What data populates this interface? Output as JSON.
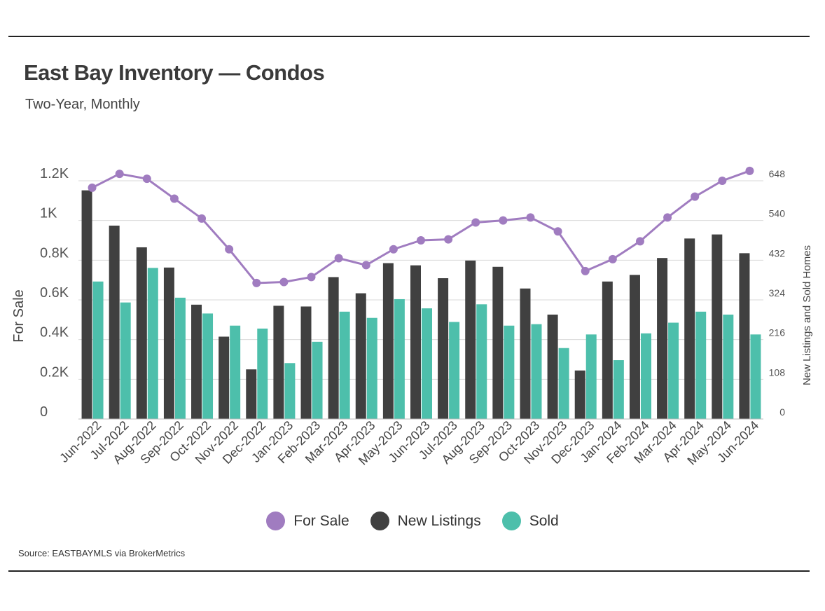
{
  "header": {
    "title": "East Bay Inventory — Condos",
    "subtitle": "Two-Year, Monthly"
  },
  "source": "Source:  EASTBAYMLS via BrokerMetrics",
  "colors": {
    "for_sale": "#a07cc0",
    "new_listings": "#404040",
    "sold": "#4dbfab",
    "grid": "#d9d9d9",
    "axis_text": "#555555"
  },
  "chart_data": {
    "type": "bar",
    "title": "East Bay Inventory — Condos",
    "subtitle": "Two-Year, Monthly",
    "categories": [
      "Jun-2022",
      "Jul-2022",
      "Aug-2022",
      "Sep-2022",
      "Oct-2022",
      "Nov-2022",
      "Dec-2022",
      "Jan-2023",
      "Feb-2023",
      "Mar-2023",
      "Apr-2023",
      "May-2023",
      "Jun-2023",
      "Jul-2023",
      "Aug-2023",
      "Sep-2023",
      "Oct-2023",
      "Nov-2023",
      "Dec-2023",
      "Jan-2024",
      "Feb-2024",
      "Mar-2024",
      "Apr-2024",
      "May-2024",
      "Jun-2024"
    ],
    "ylabel_left": "For Sale",
    "ylabel_right": "New Listings and Sold Homes",
    "ylim_left": [
      0,
      1200
    ],
    "ylim_right": [
      0,
      648
    ],
    "left_ticks": [
      {
        "value": 0,
        "label": "0"
      },
      {
        "value": 200,
        "label": "0.2K"
      },
      {
        "value": 400,
        "label": "0.4K"
      },
      {
        "value": 600,
        "label": "0.6K"
      },
      {
        "value": 800,
        "label": "0.8K"
      },
      {
        "value": 1000,
        "label": "1K"
      },
      {
        "value": 1200,
        "label": "1.2K"
      }
    ],
    "right_ticks": [
      {
        "value": 0,
        "label": "0"
      },
      {
        "value": 108,
        "label": "108"
      },
      {
        "value": 216,
        "label": "216"
      },
      {
        "value": 324,
        "label": "324"
      },
      {
        "value": 432,
        "label": "432"
      },
      {
        "value": 540,
        "label": "540"
      },
      {
        "value": 648,
        "label": "648"
      }
    ],
    "grid": true,
    "legend_position": "bottom-center",
    "series": [
      {
        "name": "For Sale",
        "type": "line",
        "axis": "left",
        "values": [
          1165,
          1235,
          1210,
          1110,
          1010,
          855,
          685,
          690,
          715,
          810,
          775,
          855,
          900,
          905,
          990,
          1000,
          1015,
          945,
          745,
          805,
          895,
          1015,
          1120,
          1200,
          1250
        ]
      },
      {
        "name": "New Listings",
        "type": "bar",
        "axis": "right",
        "values": [
          622,
          526,
          467,
          412,
          311,
          224,
          135,
          308,
          306,
          386,
          342,
          424,
          418,
          383,
          431,
          414,
          355,
          284,
          132,
          374,
          392,
          438,
          491,
          502,
          451
        ]
      },
      {
        "name": "Sold",
        "type": "bar",
        "axis": "right",
        "values": [
          374,
          317,
          411,
          330,
          287,
          254,
          246,
          152,
          210,
          292,
          275,
          326,
          301,
          264,
          312,
          254,
          258,
          193,
          230,
          160,
          233,
          262,
          292,
          284,
          230
        ]
      }
    ]
  }
}
